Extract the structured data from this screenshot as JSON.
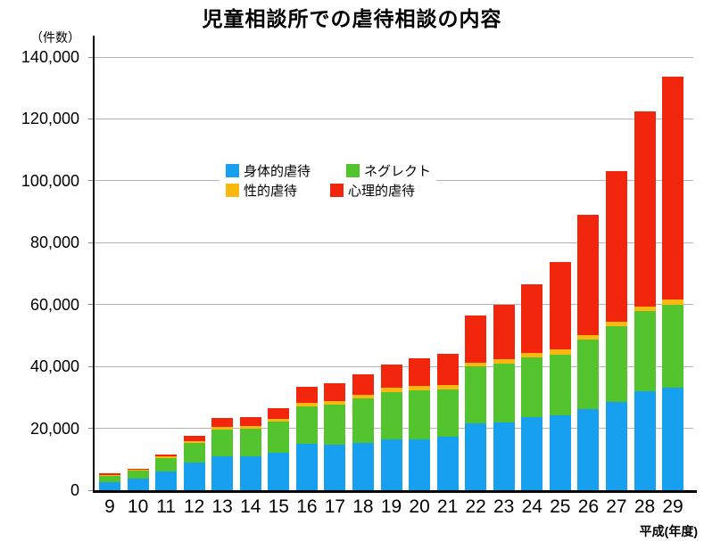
{
  "title": "児童相談所での虐待相談の内容",
  "y_axis": {
    "unit_label": "（件数）",
    "tick_values": [
      0,
      20000,
      40000,
      60000,
      80000,
      100000,
      120000,
      140000
    ],
    "tick_labels": [
      "0",
      "20,000",
      "40,000",
      "60,000",
      "80,000",
      "100,000",
      "120,000",
      "140,000"
    ]
  },
  "x_axis": {
    "label": "平成(年度)",
    "categories": [
      "9",
      "10",
      "11",
      "12",
      "13",
      "14",
      "15",
      "16",
      "17",
      "18",
      "19",
      "20",
      "21",
      "22",
      "23",
      "24",
      "25",
      "26",
      "27",
      "28",
      "29"
    ]
  },
  "colors": {
    "physical_abuse": "#18A0F0",
    "neglect": "#53C42E",
    "sexual_abuse": "#FBB810",
    "psychological_abuse": "#F2260D",
    "gridline": "#B3B3B3",
    "axis": "#000000",
    "background": "#FFFFFF"
  },
  "chart_data": {
    "type": "bar",
    "stacked": true,
    "title": "児童相談所での虐待相談の内容",
    "xlabel": "平成(年度)",
    "ylabel": "（件数）",
    "ylim": [
      0,
      140000
    ],
    "grid": true,
    "legend_position": "inside-upper-left",
    "categories": [
      "9",
      "10",
      "11",
      "12",
      "13",
      "14",
      "15",
      "16",
      "17",
      "18",
      "19",
      "20",
      "21",
      "22",
      "23",
      "24",
      "25",
      "26",
      "27",
      "28",
      "29"
    ],
    "series": [
      {
        "name": "身体的虐待",
        "color": "#18A0F0",
        "values": [
          2611,
          3673,
          5973,
          8877,
          10828,
          10932,
          12022,
          14881,
          14712,
          15364,
          16296,
          16343,
          17371,
          21559,
          21942,
          23579,
          24245,
          26181,
          28621,
          31925,
          33223
        ]
      },
      {
        "name": "ネグレクト",
        "color": "#53C42E",
        "values": [
          2109,
          2588,
          4444,
          6318,
          8804,
          8940,
          10140,
          12263,
          12911,
          14365,
          15429,
          15905,
          15185,
          18352,
          18847,
          19250,
          19627,
          22455,
          24444,
          25842,
          26821
        ]
      },
      {
        "name": "性的虐待",
        "color": "#FBB810",
        "values": [
          287,
          396,
          590,
          754,
          778,
          820,
          903,
          1048,
          1052,
          1180,
          1293,
          1324,
          1350,
          1405,
          1460,
          1449,
          1582,
          1520,
          1521,
          1622,
          1537
        ]
      },
      {
        "name": "心理的虐待",
        "color": "#F2260D",
        "values": [
          345,
          275,
          624,
          1776,
          2864,
          3046,
          3504,
          5216,
          5797,
          6414,
          7621,
          9092,
          10305,
          15068,
          17670,
          22423,
          28348,
          38775,
          48700,
          63186,
          72197
        ]
      }
    ],
    "stack_order_bottom_to_top": [
      "身体的虐待",
      "ネグレクト",
      "性的虐待",
      "心理的虐待"
    ],
    "totals": [
      5352,
      6932,
      11631,
      17725,
      23274,
      23738,
      26569,
      33408,
      34472,
      37323,
      40639,
      42664,
      44211,
      56384,
      59919,
      66701,
      73802,
      88931,
      103286,
      122575,
      133778
    ]
  }
}
